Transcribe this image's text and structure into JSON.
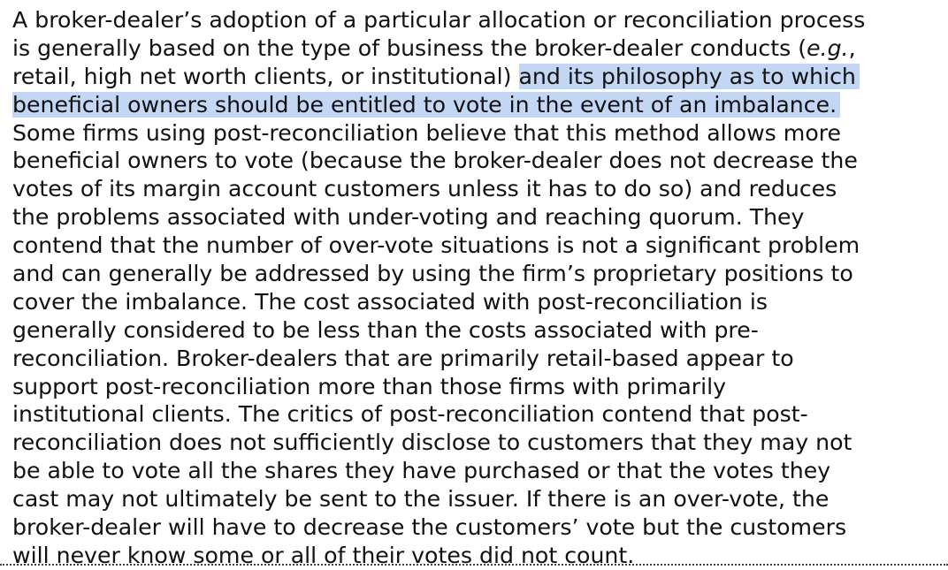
{
  "document": {
    "paragraph": {
      "lines": [
        [
          {
            "text": "A broker-dealer’s adoption of a particular allocation or reconciliation process"
          }
        ],
        [
          {
            "text": "is generally based on the type of business the broker-dealer conducts ("
          },
          {
            "text": "e.g.",
            "italic": true
          },
          {
            "text": ","
          }
        ],
        [
          {
            "text": "retail, high net worth clients, or institutional) "
          },
          {
            "text": "and its philosophy as to which",
            "highlight": true
          }
        ],
        [
          {
            "text": "beneficial owners should be entitled to vote in the event of an imbalance.",
            "highlight": true
          }
        ],
        [
          {
            "text": "Some firms using post-reconciliation believe that this method allows more"
          }
        ],
        [
          {
            "text": "beneficial owners to vote (because the broker-dealer does not decrease the"
          }
        ],
        [
          {
            "text": "votes of its margin account customers unless it has to do so) and reduces"
          }
        ],
        [
          {
            "text": "the problems associated with under-voting and reaching quorum. They"
          }
        ],
        [
          {
            "text": "contend that the number of over-vote situations is not a significant problem"
          }
        ],
        [
          {
            "text": "and can generally be addressed by using the firm’s proprietary positions to"
          }
        ],
        [
          {
            "text": "cover the imbalance. The cost associated with post-reconciliation is"
          }
        ],
        [
          {
            "text": "generally considered to be less than the costs associated with pre-"
          }
        ],
        [
          {
            "text": "reconciliation. Broker-dealers that are primarily retail-based appear to"
          }
        ],
        [
          {
            "text": "support post-reconciliation more than those firms with primarily"
          }
        ],
        [
          {
            "text": "institutional clients. The critics of post-reconciliation contend that post-"
          }
        ],
        [
          {
            "text": "reconciliation does not sufficiently disclose to customers that they may not"
          }
        ],
        [
          {
            "text": "be able to vote all the shares they have purchased or that the votes they"
          }
        ],
        [
          {
            "text": "cast may not ultimately be sent to the issuer. If there is an over-vote, the"
          }
        ],
        [
          {
            "text": "broker-dealer will have to decrease the customers’ vote but the customers"
          }
        ],
        [
          {
            "text": "will never know some or all of their votes did not count."
          }
        ]
      ]
    },
    "colors": {
      "text": "#111111",
      "selection_highlight": "#c3d7f5"
    }
  }
}
